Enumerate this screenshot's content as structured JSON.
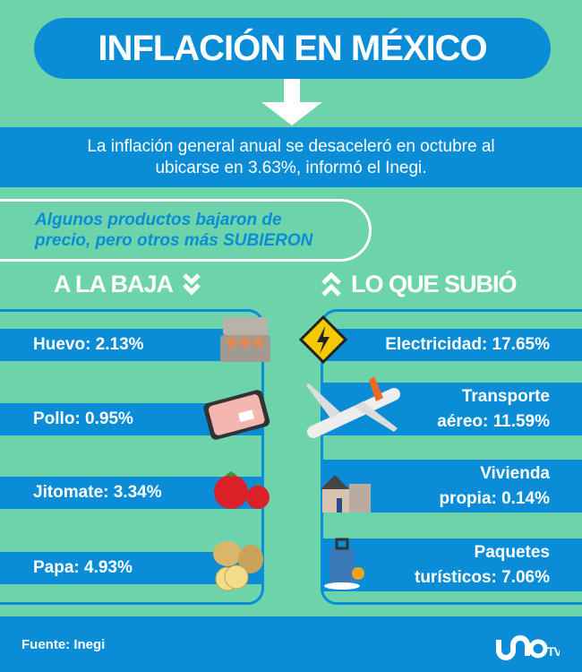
{
  "title": "INFLACIÓN EN MÉXICO",
  "summary": {
    "line1": "La inflación general anual se desaceleró en octubre al",
    "line2": "ubicarse en 3.63%, informó el Inegi."
  },
  "subtitle": {
    "line1": "Algunos productos bajaron de",
    "line2": "precio, pero otros más SUBIERON"
  },
  "down": {
    "header": "A LA BAJA",
    "items": [
      {
        "label": "Huevo: 2.13%",
        "icon": "egg-carton-icon"
      },
      {
        "label": "Pollo: 0.95%",
        "icon": "chicken-package-icon"
      },
      {
        "label": "Jitomate: 3.34%",
        "icon": "tomato-icon"
      },
      {
        "label": "Papa: 4.93%",
        "icon": "potato-icon"
      }
    ]
  },
  "up": {
    "header": "LO QUE SUBIÓ",
    "items": [
      {
        "line1": "Electricidad: 17.65%",
        "line2": "",
        "icon": "electricity-warning-icon"
      },
      {
        "line1": "Transporte",
        "line2": "aéreo: 11.59%",
        "icon": "airplane-icon"
      },
      {
        "line1": "Vivienda",
        "line2": "propia: 0.14%",
        "icon": "house-icon"
      },
      {
        "line1": "Paquetes",
        "line2": "turísticos: 7.06%",
        "icon": "suitcase-icon"
      }
    ]
  },
  "footer": {
    "source": "Fuente: Inegi",
    "logo": "UNO TV"
  },
  "colors": {
    "background": "#6dd3aa",
    "blue": "#0a8dd6"
  }
}
